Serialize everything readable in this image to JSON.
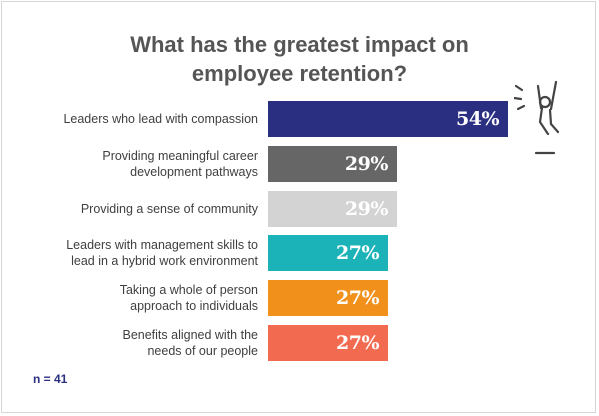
{
  "title_lines": [
    "What has the greatest impact on",
    "employee retention?"
  ],
  "note": "n = 41",
  "chart_data": {
    "type": "bar",
    "orientation": "horizontal",
    "categories": [
      "Leaders who lead with compassion",
      "Providing meaningful career\ndevelopment pathways",
      "Providing a sense of community",
      "Leaders with management skills to\nlead in a hybrid work environment",
      "Taking a whole of person\napproach to individuals",
      "Benefits aligned with the\nneeds of our people"
    ],
    "values": [
      54,
      29,
      29,
      27,
      27,
      27
    ],
    "value_labels": [
      "54%",
      "29%",
      "29%",
      "27%",
      "27%",
      "27%"
    ],
    "colors": [
      "#2b2f82",
      "#666666",
      "#d3d3d3",
      "#1cb3b8",
      "#f2901c",
      "#f26a4f"
    ],
    "title": "What has the greatest impact on employee retention?",
    "xlabel": "",
    "ylabel": "",
    "xlim": [
      0,
      54
    ],
    "grid": false,
    "legend": "none"
  }
}
